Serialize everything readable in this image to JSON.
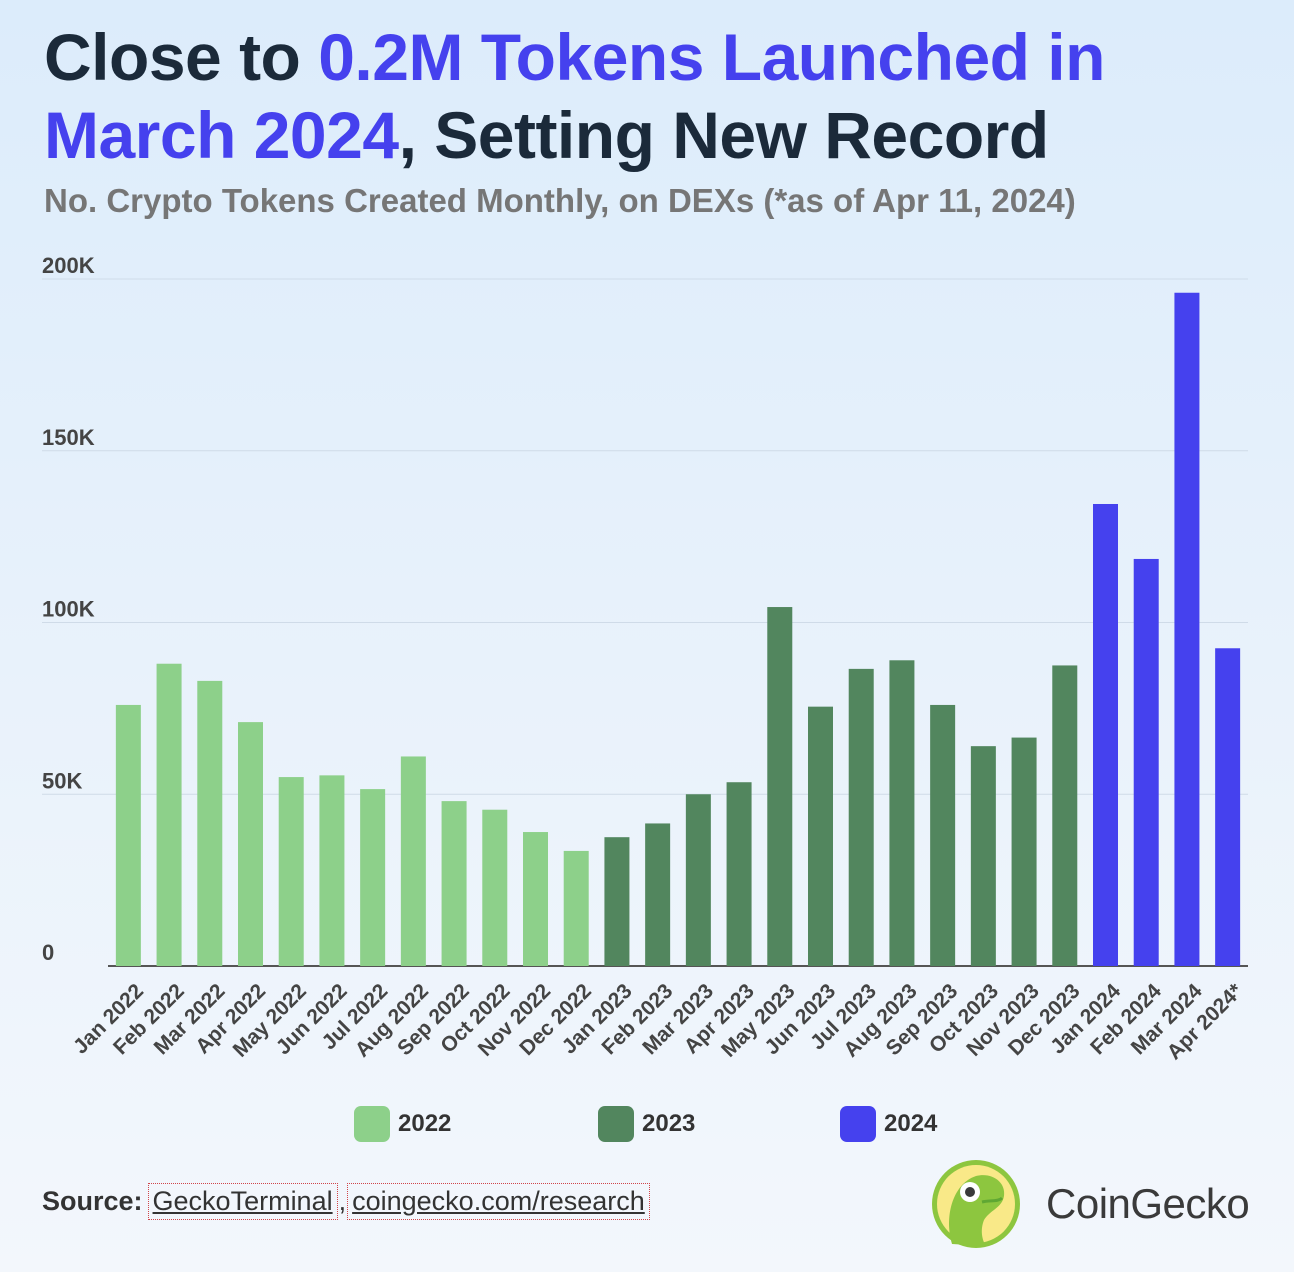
{
  "title": {
    "part1": "Close to ",
    "highlight1": "0.2M Tokens Launched in March 2024",
    "part2": ", Setting New Record"
  },
  "subtitle": "No. Crypto Tokens Created Monthly, on DEXs (*as of Apr 11, 2024)",
  "colors": {
    "2022": "#8dd08a",
    "2023": "#52865e",
    "2024": "#4541ee",
    "highlight": "#4541ee",
    "text_dark": "#1b2a3a"
  },
  "chart_data": {
    "type": "bar",
    "title": "Close to 0.2M Tokens Launched in March 2024, Setting New Record",
    "subtitle": "No. Crypto Tokens Created Monthly, on DEXs (*as of Apr 11, 2024)",
    "xlabel": "",
    "ylabel": "",
    "ylim": [
      0,
      200000
    ],
    "yticks": [
      0,
      50000,
      100000,
      150000,
      200000
    ],
    "ytick_labels": [
      "0",
      "50K",
      "100K",
      "150K",
      "200K"
    ],
    "grid": true,
    "legend_position": "bottom",
    "categories": [
      "Jan 2022",
      "Feb 2022",
      "Mar 2022",
      "Apr 2022",
      "May 2022",
      "Jun 2022",
      "Jul 2022",
      "Aug 2022",
      "Sep 2022",
      "Oct 2022",
      "Nov 2022",
      "Dec 2022",
      "Jan 2023",
      "Feb 2023",
      "Mar 2023",
      "Apr 2023",
      "May 2023",
      "Jun 2023",
      "Jul 2023",
      "Aug 2023",
      "Sep 2023",
      "Oct 2023",
      "Nov 2023",
      "Dec 2023",
      "Jan 2024",
      "Feb 2024",
      "Mar 2024",
      "Apr 2024*"
    ],
    "values": [
      76000,
      88000,
      83000,
      71000,
      55000,
      55500,
      51500,
      61000,
      48000,
      45500,
      39000,
      33500,
      37500,
      41500,
      50000,
      53500,
      104500,
      75500,
      86500,
      89000,
      76000,
      64000,
      66500,
      87500,
      134500,
      118500,
      196000,
      92500
    ],
    "series_of_category": [
      "2022",
      "2022",
      "2022",
      "2022",
      "2022",
      "2022",
      "2022",
      "2022",
      "2022",
      "2022",
      "2022",
      "2022",
      "2023",
      "2023",
      "2023",
      "2023",
      "2023",
      "2023",
      "2023",
      "2023",
      "2023",
      "2023",
      "2023",
      "2023",
      "2024",
      "2024",
      "2024",
      "2024"
    ],
    "legend": [
      "2022",
      "2023",
      "2024"
    ]
  },
  "source": {
    "label": "Source:",
    "links": [
      "GeckoTerminal",
      "coingecko.com/research"
    ],
    "separator": ","
  },
  "brand": {
    "name": "CoinGecko",
    "logo_icon": "coingecko-logo-icon"
  }
}
